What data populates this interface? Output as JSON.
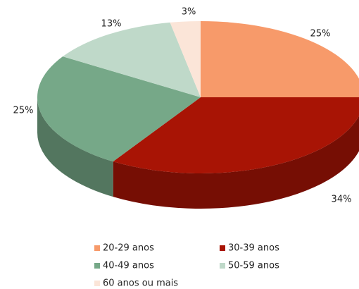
{
  "chart_data": {
    "type": "pie3d",
    "categories": [
      "20-29 anos",
      "30-39 anos",
      "40-49 anos",
      "50-59 anos",
      "60 anos ou mais"
    ],
    "values": [
      25,
      34,
      25,
      13,
      3
    ],
    "value_labels": [
      "25%",
      "34%",
      "25%",
      "13%",
      "3%"
    ],
    "colors": [
      "#f79a6a",
      "#a81405",
      "#76a888",
      "#bfd9c9",
      "#fbe5d8"
    ],
    "legend": "bottom"
  }
}
